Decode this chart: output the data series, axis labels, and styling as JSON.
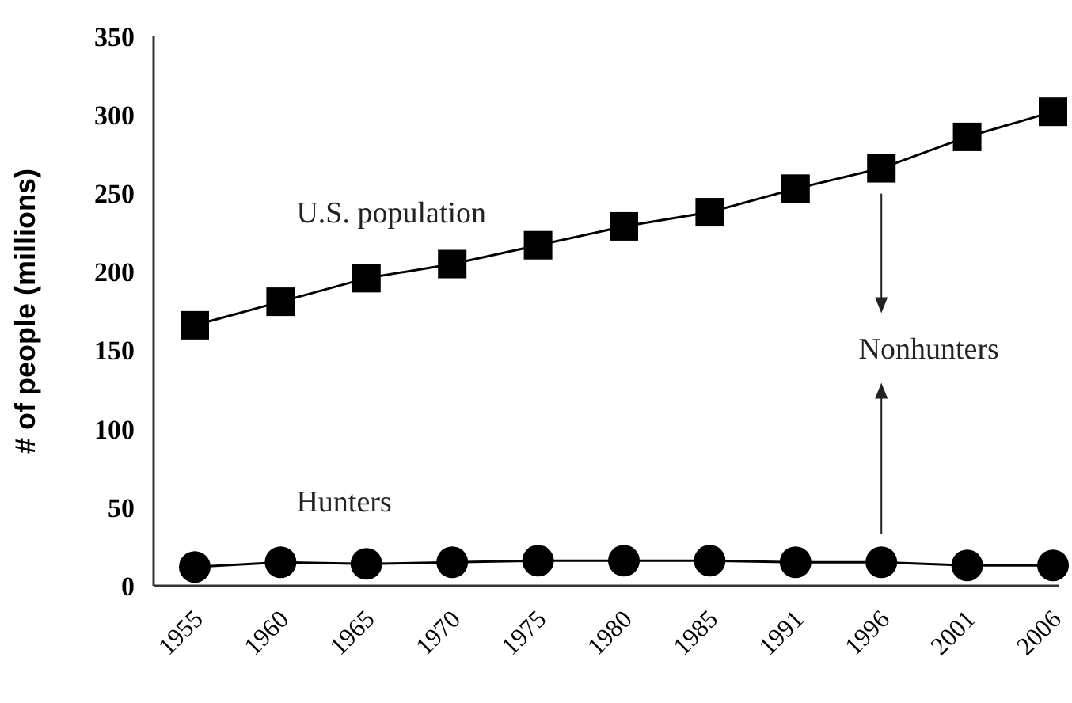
{
  "chart_data": {
    "type": "line",
    "ylabel": "# of people (millions)",
    "categories": [
      "1955",
      "1960",
      "1965",
      "1970",
      "1975",
      "1980",
      "1985",
      "1991",
      "1996",
      "2001",
      "2006"
    ],
    "series": [
      {
        "name": "U.S. population",
        "color": "#000000",
        "marker": "square",
        "values": [
          166,
          181,
          196,
          205,
          217,
          229,
          238,
          253,
          266,
          286,
          302
        ]
      },
      {
        "name": "Hunters",
        "color": "#000000",
        "marker": "circle",
        "values": [
          12,
          15,
          14,
          15,
          16,
          16,
          16,
          15,
          15,
          13,
          13
        ]
      }
    ],
    "annotations": [
      "Nonhunters"
    ],
    "ylim": [
      0,
      350
    ],
    "yticks": [
      0,
      50,
      100,
      150,
      200,
      250,
      300,
      350
    ],
    "grid": false,
    "line_style": "solid"
  }
}
